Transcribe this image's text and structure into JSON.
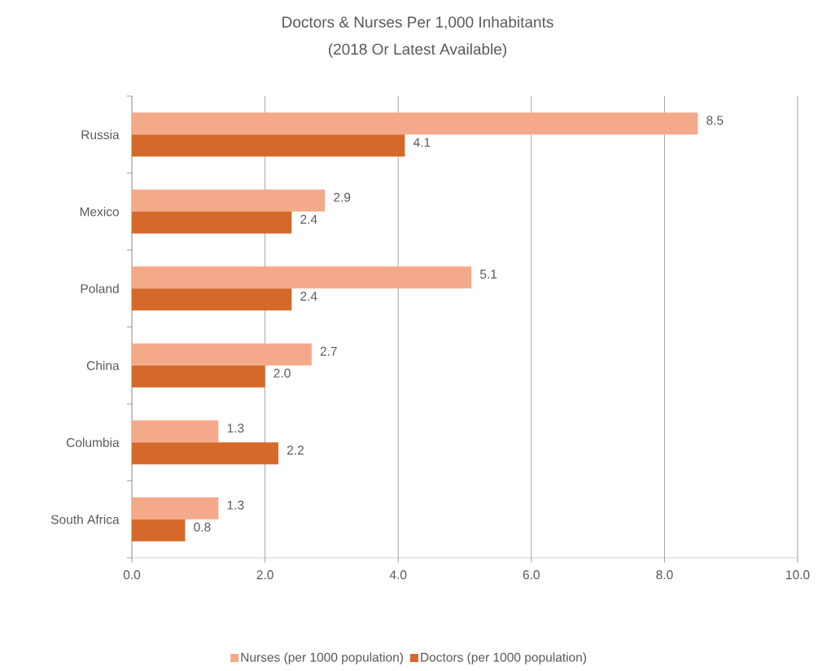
{
  "chart_data": {
    "type": "bar",
    "orientation": "horizontal",
    "title": "Doctors & Nurses Per 1,000 Inhabitants",
    "subtitle": "(2018 Or Latest Available)",
    "categories": [
      "Russia",
      "Mexico",
      "Poland",
      "China",
      "Columbia",
      "South Africa"
    ],
    "series": [
      {
        "name": "Nurses (per 1000 population)",
        "color": "#f4a98a",
        "values": [
          8.5,
          2.9,
          5.1,
          2.7,
          1.3,
          1.3
        ],
        "value_labels": [
          "8.5",
          "2.9",
          "5.1",
          "2.7",
          "1.3",
          "1.3"
        ]
      },
      {
        "name": "Doctors (per 1000 population)",
        "color": "#d4692a",
        "values": [
          4.1,
          2.4,
          2.4,
          2.0,
          2.2,
          0.8
        ],
        "value_labels": [
          "4.1",
          "2.4",
          "2.4",
          "2.0",
          "2.2",
          "0.8"
        ]
      }
    ],
    "xlim": [
      0,
      10
    ],
    "xticks": [
      {
        "value": 0,
        "label": "0.0"
      },
      {
        "value": 2,
        "label": "2.0"
      },
      {
        "value": 4,
        "label": "4.0"
      },
      {
        "value": 6,
        "label": "6.0"
      },
      {
        "value": 8,
        "label": "8.0"
      },
      {
        "value": 10,
        "label": "10.0"
      }
    ],
    "grid": "x",
    "legend": "bottom"
  }
}
